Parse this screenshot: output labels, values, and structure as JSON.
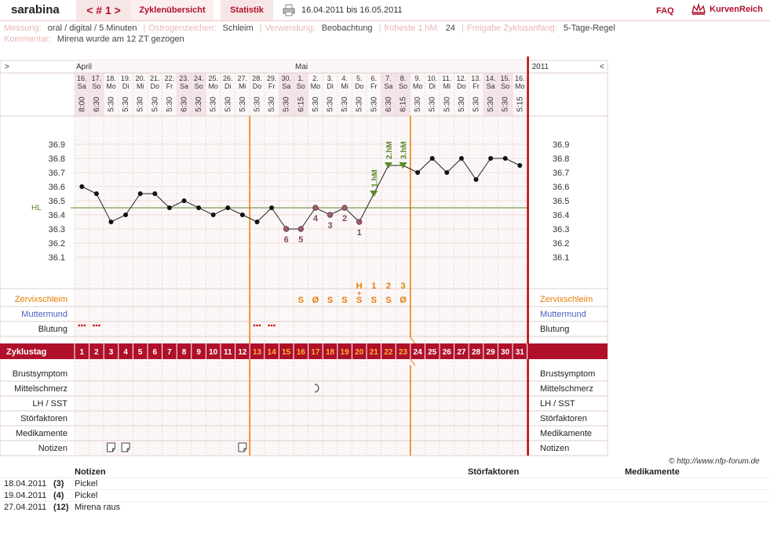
{
  "header": {
    "username": "sarabina",
    "cycle_tab": "< # 1 >",
    "overview_tab": "Zyklenübersicht",
    "stats_tab": "Statistik",
    "date_range": "16.04.2011 bis 16.05.2011",
    "faq": "FAQ",
    "logo_text": "KurvenReich"
  },
  "info": {
    "messung_label": "Messung:",
    "messung_value": "oral / digital / 5 Minuten",
    "oestrogen_label": "Östrogenzeichen:",
    "oestrogen_value": "Schleim",
    "verwendung_label": "Verwendung:",
    "verwendung_value": "Beobachtung",
    "hm_label": "früheste 1.hM:",
    "hm_value": "24",
    "freigabe_label": "Freigabe Zyklusanfang:",
    "freigabe_value": "5-Tage-Regel",
    "kommentar_label": "Kommentar:",
    "kommentar_value": "Mirena wurde am 12 ZT gezogen"
  },
  "chart_data": {
    "type": "line",
    "months": [
      {
        "label": "April",
        "day_index": 0
      },
      {
        "label": "Mai",
        "day_index": 15
      }
    ],
    "year_label": "2011",
    "nav_left": ">",
    "nav_right": "<",
    "dates": [
      "16.",
      "17.",
      "18.",
      "19.",
      "20.",
      "21.",
      "22.",
      "23.",
      "24.",
      "25.",
      "26.",
      "27.",
      "28.",
      "29.",
      "30.",
      "1.",
      "2.",
      "3.",
      "4.",
      "5.",
      "6.",
      "7.",
      "8.",
      "9.",
      "10.",
      "11.",
      "12.",
      "13.",
      "14.",
      "15.",
      "16."
    ],
    "weekdays": [
      "Sa",
      "So",
      "Mo",
      "Di",
      "Mi",
      "Do",
      "Fr",
      "Sa",
      "So",
      "Mo",
      "Di",
      "Mi",
      "Do",
      "Fr",
      "Sa",
      "So",
      "Mo",
      "Di",
      "Mi",
      "Do",
      "Fr",
      "Sa",
      "So",
      "Mo",
      "Di",
      "Mi",
      "Do",
      "Fr",
      "Sa",
      "So",
      "Mo"
    ],
    "times": [
      "8:00",
      "6:30",
      "5:30",
      "5:30",
      "5:30",
      "5:30",
      "5:30",
      "6:30",
      "5:30",
      "5:30",
      "5:30",
      "5:30",
      "5:30",
      "5:30",
      "5:30",
      "6:15",
      "5:30",
      "5:30",
      "5:30",
      "5:30",
      "5:30",
      "6:30",
      "6:15",
      "5:30",
      "5:30",
      "5:30",
      "5:30",
      "5:30",
      "5:30",
      "5:30",
      "5:15"
    ],
    "weekend": [
      true,
      true,
      false,
      false,
      false,
      false,
      false,
      true,
      true,
      false,
      false,
      false,
      false,
      false,
      true,
      true,
      false,
      false,
      false,
      false,
      false,
      true,
      true,
      false,
      false,
      false,
      false,
      false,
      true,
      true,
      false
    ],
    "temperatures": [
      36.6,
      36.55,
      36.35,
      36.4,
      36.55,
      36.55,
      36.45,
      36.5,
      36.45,
      36.4,
      36.45,
      36.4,
      36.35,
      36.45,
      36.3,
      36.3,
      36.45,
      36.4,
      36.45,
      36.35,
      36.55,
      36.75,
      36.75,
      36.7,
      36.8,
      36.7,
      36.8,
      36.65,
      36.8,
      36.8,
      36.75
    ],
    "y_ticks": [
      "36.9",
      "36.8",
      "36.7",
      "36.6",
      "36.5",
      "36.4",
      "36.3",
      "36.2",
      "36.1"
    ],
    "ylim": [
      36.1,
      36.9
    ],
    "coverline": {
      "label": "HL",
      "value": 36.45
    },
    "reference_labels": [
      {
        "day_index": 14,
        "text": "6"
      },
      {
        "day_index": 15,
        "text": "5"
      },
      {
        "day_index": 16,
        "text": "4"
      },
      {
        "day_index": 17,
        "text": "3"
      },
      {
        "day_index": 18,
        "text": "2"
      },
      {
        "day_index": 19,
        "text": "1"
      }
    ],
    "high_labels": [
      {
        "day_index": 20,
        "text": "1.hM"
      },
      {
        "day_index": 21,
        "text": "2.hM"
      },
      {
        "day_index": 22,
        "text": "3.hM"
      }
    ],
    "mucus_peak_labels": [
      {
        "day_index": 19,
        "text": "H"
      },
      {
        "day_index": 20,
        "text": "1"
      },
      {
        "day_index": 21,
        "text": "2"
      },
      {
        "day_index": 22,
        "text": "3"
      }
    ],
    "zervixschleim": [
      {
        "day_index": 15,
        "text": "S"
      },
      {
        "day_index": 16,
        "text": "Ø"
      },
      {
        "day_index": 17,
        "text": "S"
      },
      {
        "day_index": 18,
        "text": "S"
      },
      {
        "day_index": 19,
        "text": "S+"
      },
      {
        "day_index": 20,
        "text": "S"
      },
      {
        "day_index": 21,
        "text": "S"
      },
      {
        "day_index": 22,
        "text": "Ø"
      }
    ],
    "blutung_days": [
      0,
      1,
      12,
      13
    ],
    "note_days": [
      2,
      3,
      11
    ],
    "mittelschmerz_days": [
      16
    ],
    "cycle_days": [
      "1",
      "2",
      "3",
      "4",
      "5",
      "6",
      "7",
      "8",
      "9",
      "10",
      "11",
      "12",
      "13",
      "14",
      "15",
      "16",
      "17",
      "18",
      "19",
      "20",
      "21",
      "22",
      "23",
      "24",
      "25",
      "26",
      "27",
      "28",
      "29",
      "30",
      "31"
    ],
    "fertile_window": [
      12,
      22
    ],
    "row_labels": {
      "zervix": "Zervixschleim",
      "muttermund": "Muttermund",
      "blutung": "Blutung",
      "zyklustag": "Zyklustag",
      "brust": "Brustsymptom",
      "mittel": "Mittelschmerz",
      "lh": "LH / SST",
      "stoer": "Störfaktoren",
      "medi": "Medikamente",
      "notizen": "Notizen"
    },
    "colors": {
      "accent": "#b0102a",
      "orange": "#e87a00",
      "green": "#5a8a2a",
      "blue": "#4a5fc0",
      "weekend_bg": "#f3e4e8",
      "grid_bg": "#fcf7f7"
    }
  },
  "footer": {
    "copyright": "© http://www.nfp-forum.de",
    "notes_header": "Notizen",
    "stoer_header": "Störfaktoren",
    "medi_header": "Medikamente",
    "notes": [
      {
        "date": "18.04.2011",
        "day": "(3)",
        "text": "Pickel"
      },
      {
        "date": "19.04.2011",
        "day": "(4)",
        "text": "Pickel"
      },
      {
        "date": "27.04.2011",
        "day": "(12)",
        "text": "Mirena raus"
      }
    ]
  }
}
